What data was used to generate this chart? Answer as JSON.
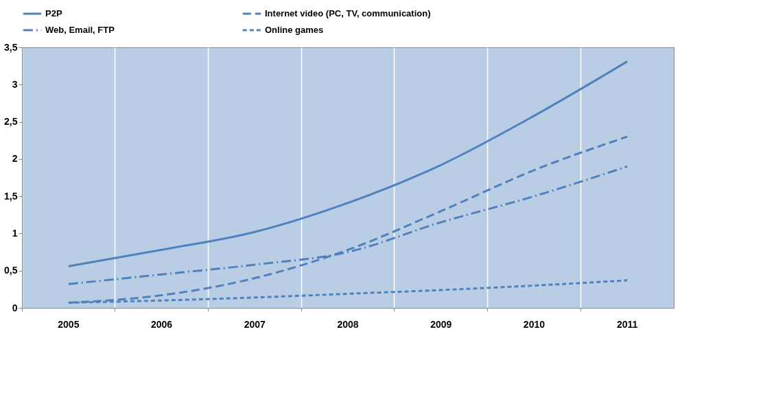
{
  "chart_data": {
    "type": "line",
    "categories": [
      "2005",
      "2006",
      "2007",
      "2008",
      "2009",
      "2010",
      "2011"
    ],
    "series": [
      {
        "name": "P2P",
        "color": "#4f81bd",
        "line_style": "solid",
        "values": [
          0.56,
          0.78,
          1.02,
          1.41,
          1.92,
          2.58,
          3.31
        ]
      },
      {
        "name": "Internet video (PC, TV, communication)",
        "color": "#4f81bd",
        "line_style": "dashed",
        "values": [
          0.07,
          0.17,
          0.4,
          0.78,
          1.3,
          1.85,
          2.3
        ]
      },
      {
        "name": "Web, Email, FTP",
        "color": "#4f81bd",
        "line_style": "dashdot",
        "values": [
          0.32,
          0.45,
          0.58,
          0.75,
          1.15,
          1.5,
          1.9
        ]
      },
      {
        "name": "Online games",
        "color": "#4f81bd",
        "line_style": "dotted",
        "values": [
          0.07,
          0.1,
          0.14,
          0.19,
          0.24,
          0.3,
          0.37
        ]
      }
    ],
    "ylim": [
      0,
      3.5
    ],
    "yticks": [
      0,
      {
        "value": 0.5,
        "label": "0,5"
      },
      1,
      {
        "value": 1.5,
        "label": "1,5"
      },
      2,
      {
        "value": 2.5,
        "label": "2,5"
      },
      3,
      {
        "value": 3.5,
        "label": "3,5"
      }
    ],
    "grid": "x",
    "legend": "top",
    "marker": "none"
  }
}
